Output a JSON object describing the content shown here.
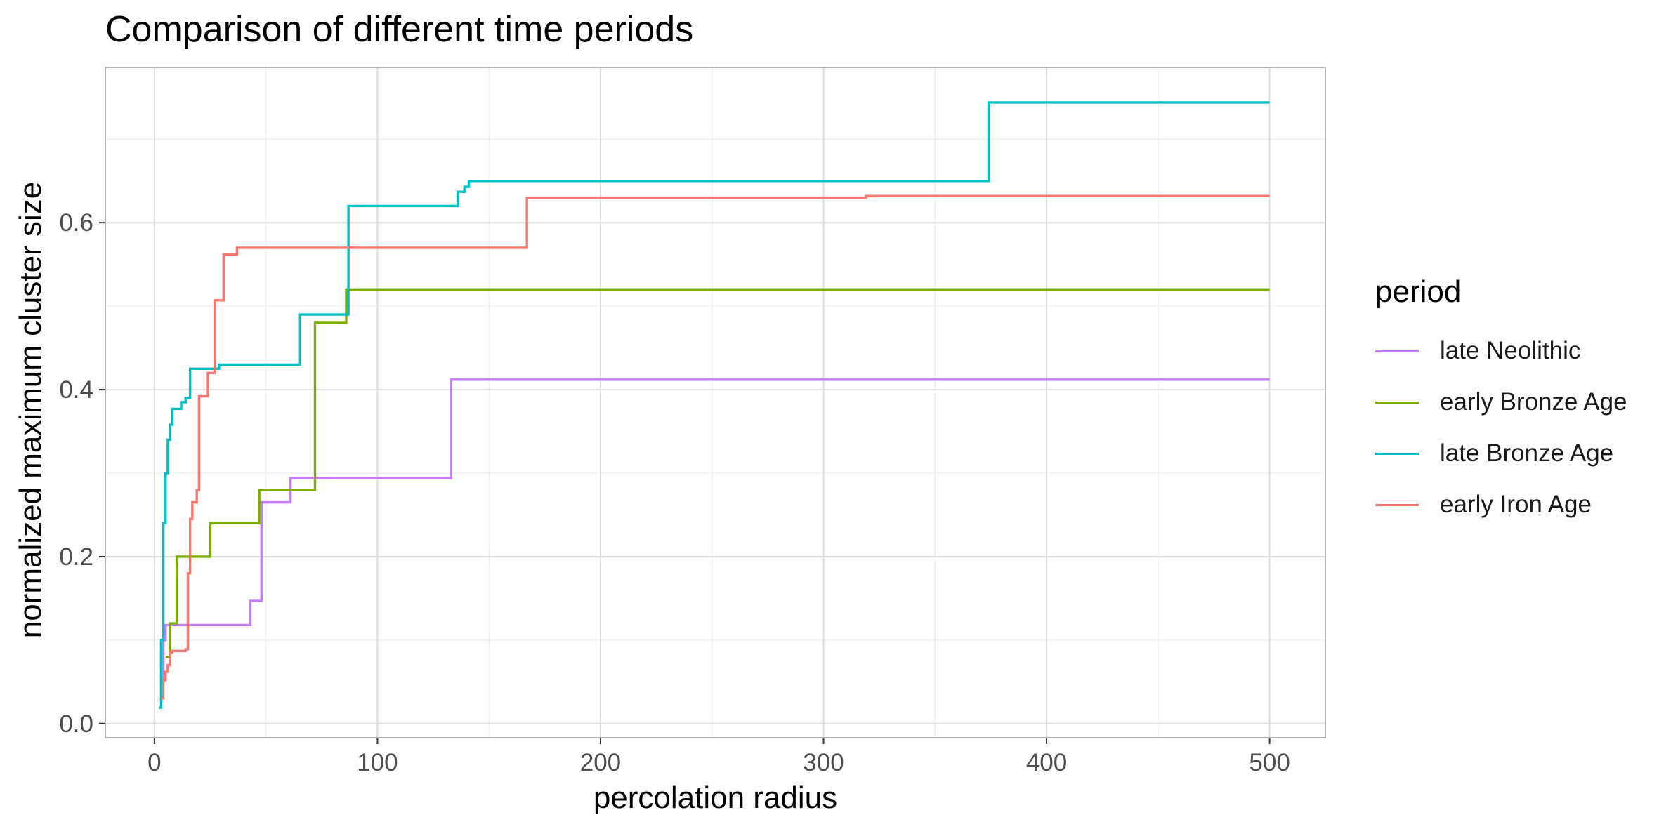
{
  "chart_data": {
    "type": "line",
    "title": "Comparison of different time periods",
    "xlabel": "percolation radius",
    "ylabel": "normalized maximum cluster size",
    "xlim": [
      -22,
      525
    ],
    "ylim": [
      -0.017,
      0.786
    ],
    "x_ticks": [
      0,
      100,
      200,
      300,
      400,
      500
    ],
    "x_tick_labels": [
      "0",
      "100",
      "200",
      "300",
      "400",
      "500"
    ],
    "y_ticks": [
      0.0,
      0.2,
      0.4,
      0.6
    ],
    "y_tick_labels": [
      "0.0",
      "0.2",
      "0.4",
      "0.6"
    ],
    "grid": true,
    "legend_title": "period",
    "legend_position": "right",
    "series": [
      {
        "name": "late Neolithic",
        "color": "#C77CFF",
        "x": [
          3,
          4,
          5,
          6,
          42,
          43,
          47,
          48,
          60,
          61,
          132,
          133,
          500
        ],
        "y": [
          0.05,
          0.1,
          0.118,
          0.118,
          0.118,
          0.147,
          0.147,
          0.265,
          0.265,
          0.294,
          0.294,
          0.412,
          0.412
        ]
      },
      {
        "name": "early Bronze Age",
        "color": "#7CAE00",
        "x": [
          5,
          6,
          7,
          9,
          10,
          24,
          25,
          46,
          47,
          71,
          72,
          85,
          86,
          500
        ],
        "y": [
          0.08,
          0.08,
          0.12,
          0.12,
          0.2,
          0.2,
          0.24,
          0.24,
          0.28,
          0.28,
          0.48,
          0.48,
          0.52,
          0.52
        ]
      },
      {
        "name": "late Bronze Age",
        "color": "#00BFC4",
        "x": [
          2,
          3,
          4,
          5,
          6,
          7,
          8,
          9,
          12,
          14,
          15,
          16,
          17,
          28,
          29,
          64,
          65,
          86,
          87,
          135,
          136,
          138,
          139,
          140,
          141,
          142,
          373,
          374,
          500
        ],
        "y": [
          0.019,
          0.1,
          0.24,
          0.3,
          0.34,
          0.358,
          0.377,
          0.377,
          0.385,
          0.39,
          0.39,
          0.425,
          0.425,
          0.425,
          0.43,
          0.43,
          0.49,
          0.49,
          0.62,
          0.62,
          0.637,
          0.637,
          0.643,
          0.643,
          0.65,
          0.65,
          0.65,
          0.744,
          0.744
        ]
      },
      {
        "name": "early Iron Age",
        "color": "#F8766D",
        "x": [
          3,
          4,
          5,
          6,
          7,
          8,
          9,
          14,
          15,
          16,
          17,
          19,
          20,
          23,
          24,
          26,
          27,
          30,
          31,
          36,
          37,
          166,
          167,
          318,
          319,
          500
        ],
        "y": [
          0.03,
          0.052,
          0.062,
          0.07,
          0.085,
          0.087,
          0.087,
          0.089,
          0.18,
          0.245,
          0.265,
          0.28,
          0.392,
          0.392,
          0.42,
          0.42,
          0.507,
          0.507,
          0.562,
          0.562,
          0.57,
          0.57,
          0.63,
          0.63,
          0.632,
          0.632
        ]
      }
    ]
  }
}
